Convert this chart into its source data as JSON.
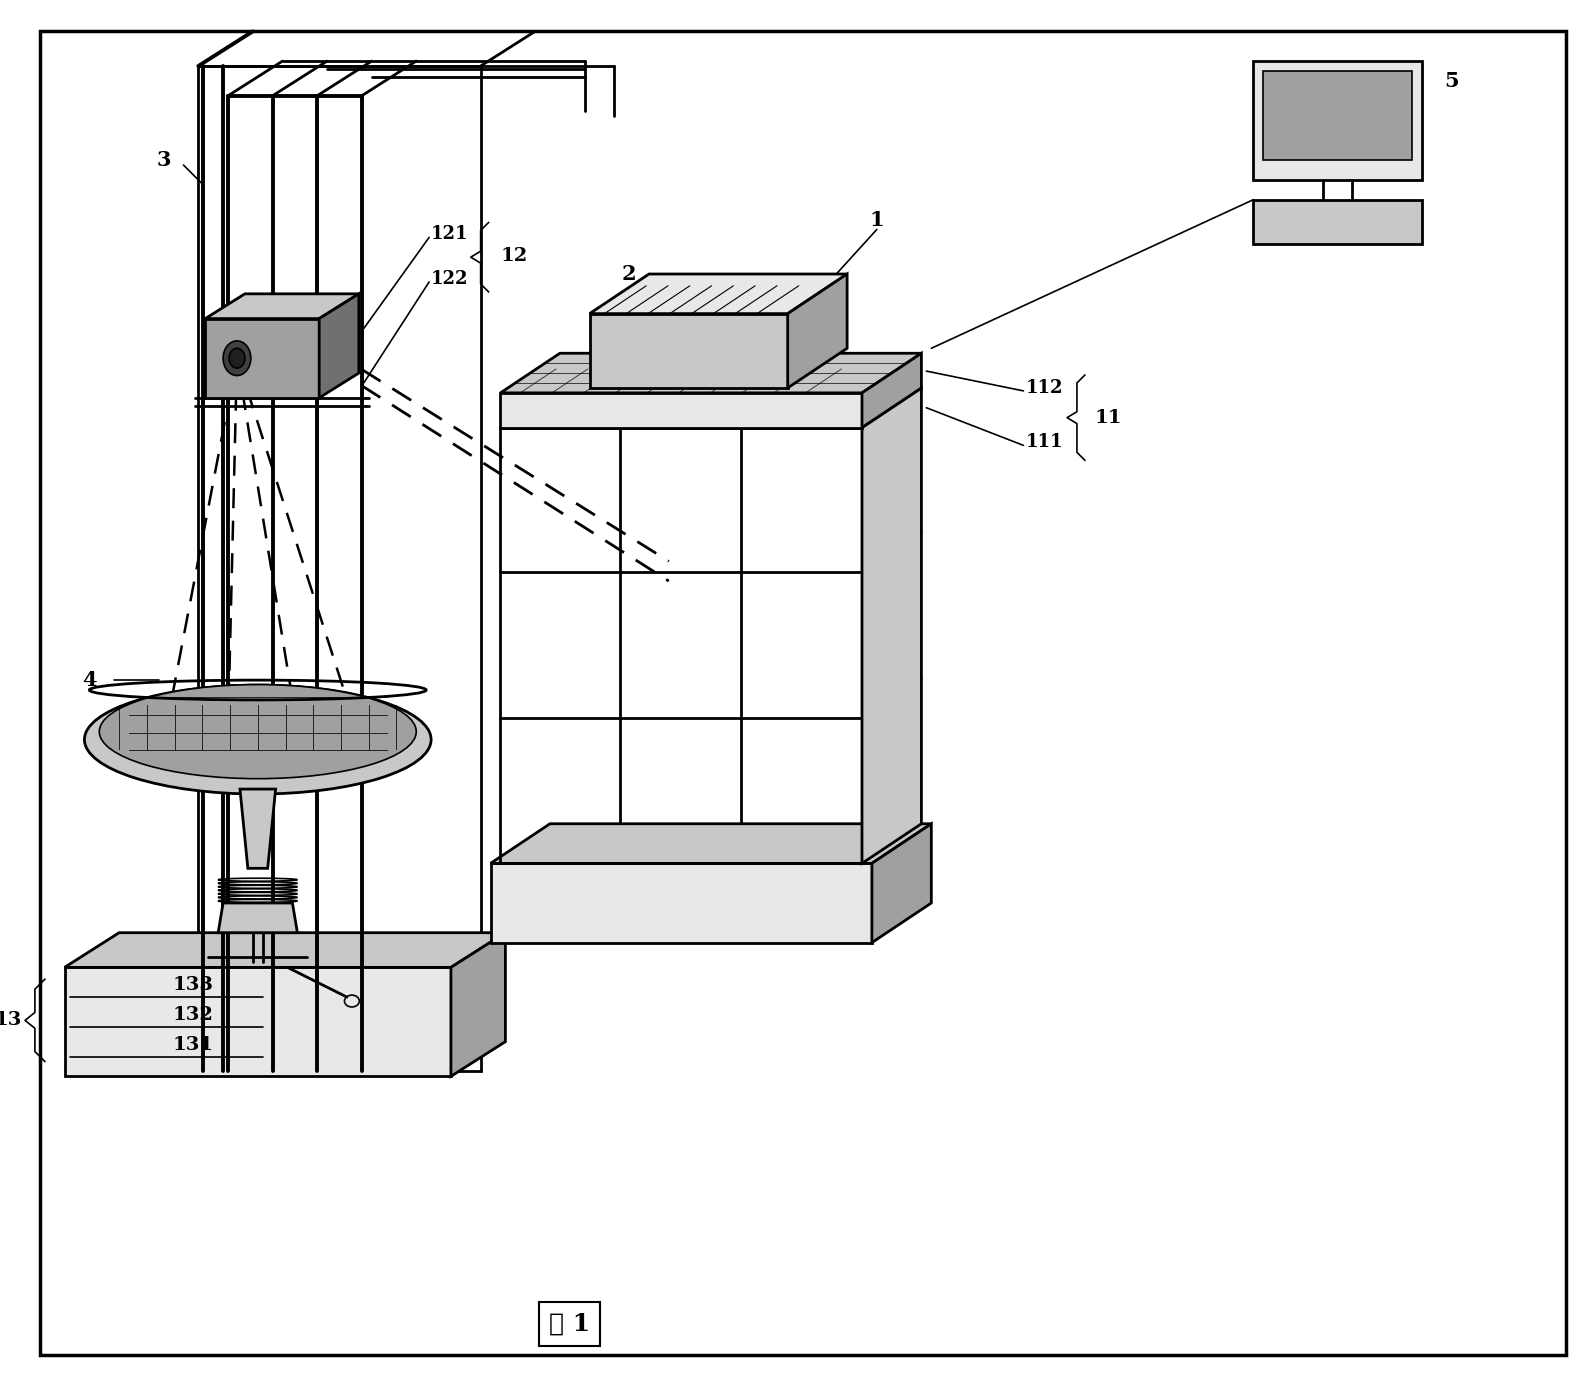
{
  "bg_color": "#ffffff",
  "lw_main": 2.0,
  "lw_thin": 1.2,
  "lw_thick": 2.8,
  "gray_light": "#e8e8e8",
  "gray_mid": "#c8c8c8",
  "gray_dark": "#a0a0a0",
  "gray_vdark": "#707070",
  "caption": "图 1"
}
